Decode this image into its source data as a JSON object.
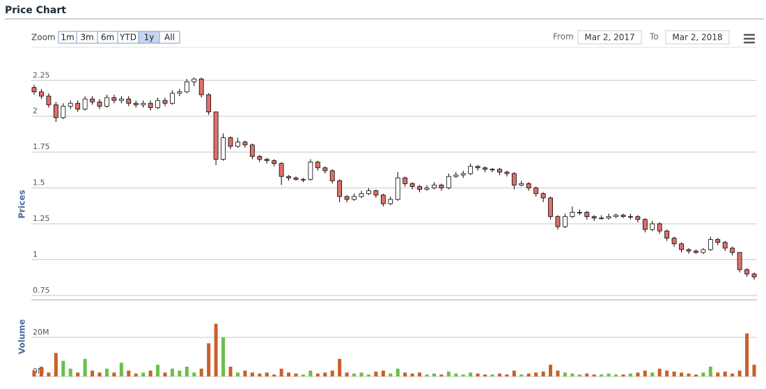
{
  "header": {
    "title": "Price Chart"
  },
  "toolbar": {
    "zoom_label": "Zoom",
    "zoom_buttons": [
      "1m",
      "3m",
      "6m",
      "YTD",
      "1y",
      "All"
    ],
    "selected": "1y",
    "from_label": "From",
    "from_date": "Mar 2, 2017",
    "to_label": "To",
    "to_date": "Mar 2, 2018"
  },
  "chart_data": [
    {
      "type": "candlestick",
      "ylabel": "Prices",
      "up_color": "#ffffff",
      "down_color": "#e07068",
      "grid": true,
      "ylim": [
        0.72,
        2.48
      ],
      "yticks": [
        0.75,
        1,
        1.25,
        1.5,
        1.75,
        2,
        2.25
      ],
      "open": [
        2.2,
        2.17,
        2.14,
        2.08,
        1.99,
        2.07,
        2.09,
        2.05,
        2.12,
        2.1,
        2.07,
        2.13,
        2.11,
        2.12,
        2.09,
        2.08,
        2.09,
        2.06,
        2.11,
        2.09,
        2.16,
        2.17,
        2.24,
        2.26,
        2.15,
        2.03,
        1.7,
        1.85,
        1.79,
        1.82,
        1.8,
        1.72,
        1.7,
        1.69,
        1.67,
        1.58,
        1.57,
        1.56,
        1.56,
        1.68,
        1.64,
        1.62,
        1.55,
        1.44,
        1.42,
        1.44,
        1.46,
        1.48,
        1.45,
        1.39,
        1.42,
        1.57,
        1.53,
        1.51,
        1.49,
        1.5,
        1.52,
        1.5,
        1.58,
        1.59,
        1.6,
        1.65,
        1.64,
        1.63,
        1.63,
        1.61,
        1.6,
        1.52,
        1.53,
        1.5,
        1.46,
        1.43,
        1.3,
        1.23,
        1.3,
        1.33,
        1.33,
        1.3,
        1.29,
        1.29,
        1.3,
        1.31,
        1.3,
        1.3,
        1.28,
        1.21,
        1.25,
        1.2,
        1.15,
        1.11,
        1.07,
        1.06,
        1.05,
        1.07,
        1.14,
        1.12,
        1.08,
        1.05,
        0.93,
        0.9
      ],
      "high": [
        2.22,
        2.19,
        2.16,
        2.1,
        2.09,
        2.11,
        2.11,
        2.14,
        2.14,
        2.12,
        2.15,
        2.15,
        2.14,
        2.14,
        2.11,
        2.11,
        2.11,
        2.13,
        2.13,
        2.18,
        2.19,
        2.26,
        2.27,
        2.27,
        2.16,
        2.03,
        1.88,
        1.86,
        1.85,
        1.83,
        1.81,
        1.73,
        1.71,
        1.7,
        1.68,
        1.59,
        1.58,
        1.57,
        1.7,
        1.69,
        1.65,
        1.63,
        1.56,
        1.45,
        1.46,
        1.48,
        1.5,
        1.49,
        1.46,
        1.44,
        1.61,
        1.58,
        1.54,
        1.52,
        1.52,
        1.54,
        1.53,
        1.6,
        1.61,
        1.62,
        1.67,
        1.66,
        1.65,
        1.64,
        1.64,
        1.62,
        1.61,
        1.55,
        1.54,
        1.51,
        1.47,
        1.44,
        1.31,
        1.32,
        1.37,
        1.35,
        1.34,
        1.31,
        1.31,
        1.32,
        1.32,
        1.32,
        1.32,
        1.31,
        1.29,
        1.27,
        1.26,
        1.21,
        1.16,
        1.12,
        1.08,
        1.07,
        1.08,
        1.16,
        1.15,
        1.13,
        1.09,
        1.05,
        0.94,
        0.91
      ],
      "low": [
        2.15,
        2.12,
        2.06,
        1.96,
        1.98,
        2.05,
        2.03,
        2.04,
        2.08,
        2.05,
        2.06,
        2.09,
        2.09,
        2.07,
        2.06,
        2.06,
        2.04,
        2.05,
        2.07,
        2.08,
        2.14,
        2.16,
        2.21,
        2.13,
        2.01,
        1.66,
        1.69,
        1.77,
        1.78,
        1.78,
        1.7,
        1.68,
        1.67,
        1.65,
        1.52,
        1.55,
        1.55,
        1.54,
        1.55,
        1.62,
        1.6,
        1.53,
        1.4,
        1.4,
        1.41,
        1.43,
        1.45,
        1.43,
        1.37,
        1.38,
        1.41,
        1.51,
        1.49,
        1.47,
        1.48,
        1.49,
        1.48,
        1.49,
        1.57,
        1.57,
        1.59,
        1.62,
        1.61,
        1.61,
        1.59,
        1.58,
        1.49,
        1.51,
        1.48,
        1.44,
        1.4,
        1.28,
        1.21,
        1.22,
        1.29,
        1.31,
        1.28,
        1.27,
        1.28,
        1.28,
        1.29,
        1.29,
        1.28,
        1.26,
        1.19,
        1.2,
        1.18,
        1.13,
        1.09,
        1.05,
        1.04,
        1.04,
        1.04,
        1.06,
        1.1,
        1.06,
        1.03,
        0.91,
        0.88,
        0.86
      ],
      "close": [
        2.17,
        2.14,
        2.08,
        1.99,
        2.07,
        2.09,
        2.05,
        2.12,
        2.1,
        2.07,
        2.13,
        2.11,
        2.12,
        2.09,
        2.08,
        2.09,
        2.06,
        2.11,
        2.09,
        2.16,
        2.17,
        2.24,
        2.26,
        2.15,
        2.03,
        1.7,
        1.85,
        1.79,
        1.82,
        1.8,
        1.72,
        1.7,
        1.69,
        1.67,
        1.58,
        1.57,
        1.56,
        1.56,
        1.68,
        1.64,
        1.62,
        1.55,
        1.44,
        1.42,
        1.44,
        1.46,
        1.48,
        1.45,
        1.39,
        1.42,
        1.57,
        1.53,
        1.51,
        1.49,
        1.5,
        1.52,
        1.5,
        1.58,
        1.59,
        1.6,
        1.65,
        1.64,
        1.63,
        1.63,
        1.61,
        1.6,
        1.52,
        1.53,
        1.5,
        1.46,
        1.43,
        1.3,
        1.23,
        1.3,
        1.33,
        1.33,
        1.3,
        1.29,
        1.29,
        1.3,
        1.31,
        1.3,
        1.3,
        1.28,
        1.21,
        1.25,
        1.2,
        1.15,
        1.11,
        1.07,
        1.06,
        1.05,
        1.07,
        1.14,
        1.12,
        1.08,
        1.05,
        0.93,
        0.9,
        0.88
      ]
    },
    {
      "type": "bar",
      "ylabel": "Volume",
      "up_color": "#6cbf4a",
      "down_color": "#c8602a",
      "grid": true,
      "ylim": [
        0,
        30000000
      ],
      "yticks": [
        {
          "value": 0,
          "label": "0M"
        },
        {
          "value": 20000000,
          "label": "20M"
        }
      ],
      "values": [
        3000000,
        5000000,
        2000000,
        12000000,
        8000000,
        4000000,
        2000000,
        9000000,
        3000000,
        2000000,
        4000000,
        2000000,
        7000000,
        3000000,
        1500000,
        2000000,
        3000000,
        6000000,
        2000000,
        4000000,
        3000000,
        5000000,
        2000000,
        4000000,
        17000000,
        27000000,
        20000000,
        5000000,
        2000000,
        3000000,
        2000000,
        1500000,
        2000000,
        1000000,
        4000000,
        2000000,
        1500000,
        1000000,
        3000000,
        1500000,
        2000000,
        3000000,
        9000000,
        2000000,
        1500000,
        2000000,
        1000000,
        2500000,
        3000000,
        1500000,
        4000000,
        2000000,
        1500000,
        2000000,
        1000000,
        1500000,
        1000000,
        2500000,
        1500000,
        1000000,
        2000000,
        1500000,
        1000000,
        1000000,
        1500000,
        1000000,
        3000000,
        1000000,
        1500000,
        2000000,
        2500000,
        6000000,
        3000000,
        2000000,
        1500000,
        1000000,
        1500000,
        1000000,
        1000000,
        1500000,
        1000000,
        1000000,
        1500000,
        2000000,
        3000000,
        2000000,
        4000000,
        3000000,
        2500000,
        2000000,
        1500000,
        1000000,
        2000000,
        5000000,
        2000000,
        2500000,
        1500000,
        3000000,
        22000000,
        6000000
      ]
    }
  ]
}
